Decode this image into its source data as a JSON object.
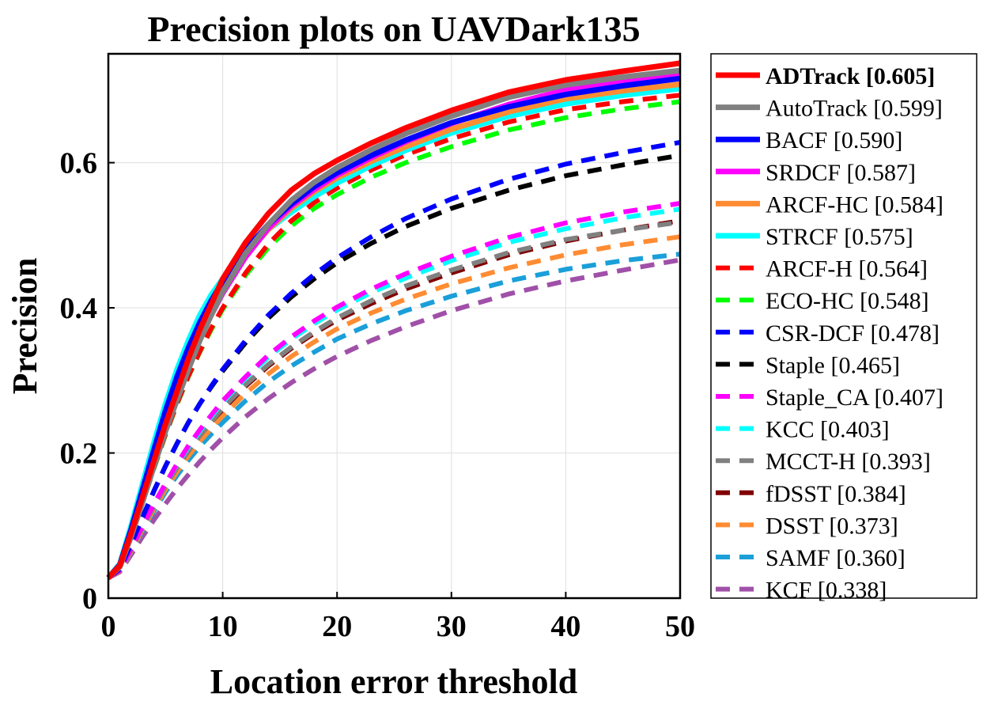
{
  "chart_data": {
    "type": "line",
    "title": "Precision plots on UAVDark135",
    "xlabel": "Location error threshold",
    "ylabel": "Precision",
    "xlim": [
      0,
      50
    ],
    "ylim": [
      0,
      0.75
    ],
    "xticks": [
      0,
      10,
      20,
      30,
      40,
      50
    ],
    "xtick_labels": [
      "0",
      "10",
      "20",
      "30",
      "40",
      "50"
    ],
    "yticks": [
      0,
      0.2,
      0.4,
      0.6
    ],
    "ytick_labels": [
      "0",
      "0.2",
      "0.4",
      "0.6"
    ],
    "grid": true,
    "legend_position": "outside-right",
    "x": [
      0,
      1,
      2,
      3,
      4,
      5,
      6,
      7,
      8,
      9,
      10,
      12,
      14,
      16,
      18,
      20,
      23,
      26,
      30,
      35,
      40,
      45,
      50
    ],
    "series": [
      {
        "name": "ADTrack [0.605]",
        "label": "ADTrack [0.605]",
        "color": "#ff0000",
        "style": "solid",
        "bold": true,
        "values": [
          0.028,
          0.045,
          0.09,
          0.14,
          0.19,
          0.24,
          0.285,
          0.33,
          0.37,
          0.405,
          0.44,
          0.49,
          0.53,
          0.562,
          0.585,
          0.603,
          0.627,
          0.648,
          0.672,
          0.697,
          0.714,
          0.726,
          0.737
        ]
      },
      {
        "name": "AutoTrack [0.599]",
        "label": "AutoTrack [0.599]",
        "color": "#808080",
        "style": "solid",
        "bold": false,
        "values": [
          0.028,
          0.043,
          0.085,
          0.133,
          0.182,
          0.23,
          0.273,
          0.315,
          0.355,
          0.39,
          0.422,
          0.475,
          0.515,
          0.548,
          0.573,
          0.593,
          0.618,
          0.64,
          0.664,
          0.69,
          0.707,
          0.718,
          0.727
        ]
      },
      {
        "name": "BACF [0.590]",
        "label": "BACF [0.590]",
        "color": "#0000ff",
        "style": "solid",
        "bold": false,
        "values": [
          0.028,
          0.046,
          0.095,
          0.15,
          0.205,
          0.258,
          0.305,
          0.345,
          0.38,
          0.41,
          0.436,
          0.48,
          0.515,
          0.543,
          0.567,
          0.586,
          0.61,
          0.631,
          0.655,
          0.677,
          0.694,
          0.706,
          0.716
        ]
      },
      {
        "name": "SRDCF [0.587]",
        "label": "SRDCF [0.587]",
        "color": "#ff00ff",
        "style": "solid",
        "bold": false,
        "values": [
          0.028,
          0.044,
          0.088,
          0.138,
          0.188,
          0.236,
          0.28,
          0.32,
          0.357,
          0.39,
          0.42,
          0.47,
          0.51,
          0.54,
          0.563,
          0.583,
          0.607,
          0.629,
          0.654,
          0.68,
          0.7,
          0.712,
          0.722
        ]
      },
      {
        "name": "ARCF-HC [0.584]",
        "label": "ARCF-HC [0.584]",
        "color": "#ff8c33",
        "style": "solid",
        "bold": false,
        "values": [
          0.028,
          0.044,
          0.09,
          0.142,
          0.193,
          0.242,
          0.287,
          0.328,
          0.365,
          0.397,
          0.426,
          0.472,
          0.508,
          0.537,
          0.56,
          0.579,
          0.602,
          0.622,
          0.646,
          0.67,
          0.688,
          0.699,
          0.708
        ]
      },
      {
        "name": "STRCF [0.575]",
        "label": "STRCF [0.575]",
        "color": "#00ffff",
        "style": "solid",
        "bold": false,
        "values": [
          0.028,
          0.047,
          0.1,
          0.158,
          0.215,
          0.268,
          0.315,
          0.355,
          0.39,
          0.418,
          0.44,
          0.478,
          0.508,
          0.532,
          0.553,
          0.572,
          0.596,
          0.617,
          0.641,
          0.664,
          0.681,
          0.693,
          0.702
        ]
      },
      {
        "name": "ARCF-H [0.564]",
        "label": "ARCF-H [0.564]",
        "color": "#ff0000",
        "style": "dashed",
        "bold": false,
        "values": [
          0.028,
          0.043,
          0.085,
          0.133,
          0.18,
          0.226,
          0.268,
          0.306,
          0.34,
          0.372,
          0.4,
          0.448,
          0.488,
          0.52,
          0.545,
          0.565,
          0.59,
          0.611,
          0.633,
          0.656,
          0.673,
          0.684,
          0.693
        ]
      },
      {
        "name": "ECO-HC [0.548]",
        "label": "ECO-HC [0.548]",
        "color": "#00ff00",
        "style": "dashed",
        "bold": false,
        "values": [
          0.028,
          0.043,
          0.085,
          0.132,
          0.179,
          0.225,
          0.267,
          0.305,
          0.339,
          0.37,
          0.398,
          0.445,
          0.483,
          0.513,
          0.537,
          0.556,
          0.58,
          0.6,
          0.622,
          0.645,
          0.662,
          0.674,
          0.684
        ]
      },
      {
        "name": "CSR-DCF [0.478]",
        "label": "CSR-DCF [0.478]",
        "color": "#0000ff",
        "style": "dashed",
        "bold": false,
        "values": [
          0.028,
          0.04,
          0.075,
          0.112,
          0.148,
          0.182,
          0.213,
          0.242,
          0.268,
          0.292,
          0.315,
          0.355,
          0.39,
          0.42,
          0.446,
          0.469,
          0.498,
          0.523,
          0.55,
          0.577,
          0.598,
          0.614,
          0.628
        ]
      },
      {
        "name": "Staple [0.465]",
        "label": "Staple [0.465]",
        "color": "#000000",
        "style": "dashed",
        "bold": false,
        "values": [
          0.028,
          0.04,
          0.075,
          0.112,
          0.148,
          0.182,
          0.213,
          0.242,
          0.268,
          0.291,
          0.313,
          0.352,
          0.386,
          0.415,
          0.44,
          0.462,
          0.489,
          0.512,
          0.537,
          0.562,
          0.582,
          0.597,
          0.61
        ]
      },
      {
        "name": "Staple_CA [0.407]",
        "label": "Staple_CA [0.407]",
        "color": "#ff00ff",
        "style": "dashed",
        "bold": false,
        "values": [
          0.028,
          0.038,
          0.068,
          0.1,
          0.13,
          0.158,
          0.185,
          0.21,
          0.232,
          0.252,
          0.272,
          0.305,
          0.335,
          0.36,
          0.382,
          0.401,
          0.426,
          0.447,
          0.471,
          0.497,
          0.517,
          0.532,
          0.544
        ]
      },
      {
        "name": "KCC [0.403]",
        "label": "KCC [0.403]",
        "color": "#00ffff",
        "style": "dashed",
        "bold": false,
        "values": [
          0.028,
          0.038,
          0.068,
          0.1,
          0.13,
          0.158,
          0.184,
          0.208,
          0.23,
          0.25,
          0.27,
          0.303,
          0.332,
          0.357,
          0.378,
          0.397,
          0.421,
          0.441,
          0.465,
          0.49,
          0.509,
          0.524,
          0.536
        ]
      },
      {
        "name": "MCCT-H [0.393]",
        "label": "MCCT-H [0.393]",
        "color": "#808080",
        "style": "dashed",
        "bold": false,
        "values": [
          0.028,
          0.038,
          0.067,
          0.098,
          0.127,
          0.155,
          0.18,
          0.203,
          0.224,
          0.243,
          0.262,
          0.294,
          0.322,
          0.346,
          0.367,
          0.386,
          0.41,
          0.43,
          0.452,
          0.476,
          0.494,
          0.507,
          0.518
        ]
      },
      {
        "name": "fDSST [0.384]",
        "label": "fDSST [0.384]",
        "color": "#800000",
        "style": "dashed",
        "bold": false,
        "values": [
          0.028,
          0.038,
          0.067,
          0.098,
          0.127,
          0.155,
          0.18,
          0.203,
          0.224,
          0.243,
          0.26,
          0.292,
          0.32,
          0.344,
          0.365,
          0.383,
          0.406,
          0.426,
          0.448,
          0.473,
          0.492,
          0.507,
          0.52
        ]
      },
      {
        "name": "DSST [0.373]",
        "label": "DSST [0.373]",
        "color": "#ff8c33",
        "style": "dashed",
        "bold": false,
        "values": [
          0.028,
          0.037,
          0.065,
          0.095,
          0.123,
          0.15,
          0.174,
          0.196,
          0.216,
          0.234,
          0.251,
          0.282,
          0.309,
          0.333,
          0.353,
          0.371,
          0.393,
          0.412,
          0.433,
          0.455,
          0.473,
          0.487,
          0.498
        ]
      },
      {
        "name": "SAMF [0.360]",
        "label": "SAMF [0.360]",
        "color": "#1a9fd9",
        "style": "dashed",
        "bold": false,
        "values": [
          0.028,
          0.037,
          0.064,
          0.093,
          0.12,
          0.146,
          0.169,
          0.19,
          0.209,
          0.226,
          0.242,
          0.272,
          0.298,
          0.32,
          0.339,
          0.357,
          0.378,
          0.396,
          0.416,
          0.437,
          0.453,
          0.465,
          0.474
        ]
      },
      {
        "name": "KCF [0.338]",
        "label": "KCF [0.338]",
        "color": "#a050a8",
        "style": "dashed",
        "bold": false,
        "values": [
          0.028,
          0.036,
          0.06,
          0.085,
          0.108,
          0.13,
          0.151,
          0.17,
          0.188,
          0.205,
          0.221,
          0.25,
          0.275,
          0.297,
          0.316,
          0.333,
          0.355,
          0.374,
          0.396,
          0.419,
          0.437,
          0.452,
          0.466
        ]
      }
    ]
  }
}
